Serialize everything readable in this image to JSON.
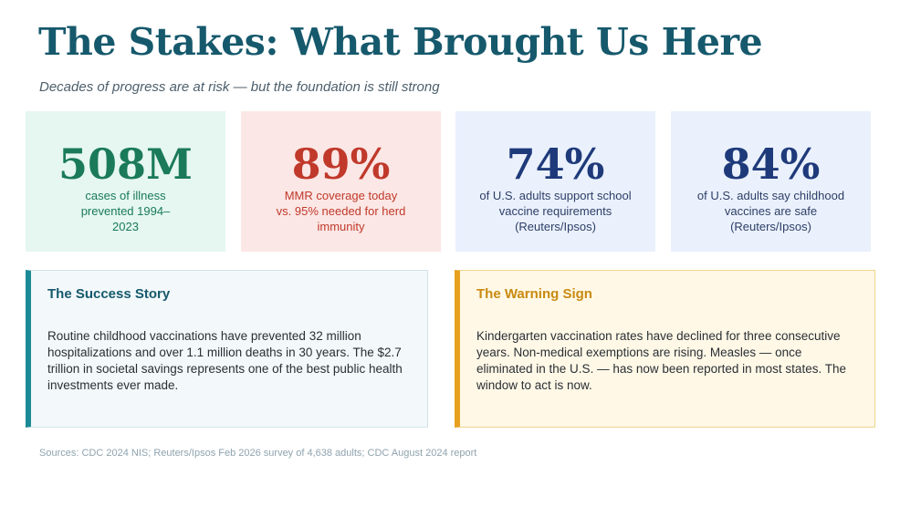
{
  "header": {
    "title": "The Stakes: What Brought Us Here",
    "subtitle": "Decades of progress are at risk — but the foundation is still strong"
  },
  "stats": [
    {
      "value": "508M",
      "label": "cases of illness prevented 1994–2023"
    },
    {
      "value": "89%",
      "label": "MMR coverage today vs. 95% needed for herd immunity"
    },
    {
      "value": "74%",
      "label": "of U.S. adults support school vaccine requirements (Reuters/Ipsos)"
    },
    {
      "value": "84%",
      "label": "of U.S. adults say childhood vaccines are safe (Reuters/Ipsos)"
    }
  ],
  "panels": [
    {
      "title": "The Success Story",
      "body": "Routine childhood vaccinations have prevented 32 million hospitalizations and over 1.1 million deaths in 30 years. The $2.7 trillion in societal savings represents one of the best public health investments ever made."
    },
    {
      "title": "The Warning Sign",
      "body": "Kindergarten vaccination rates have declined for three consecutive years. Non-medical exemptions are rising. Measles — once eliminated in the U.S. — has now been reported in most states. The window to act is now."
    }
  ],
  "footer": {
    "sources": "Sources: CDC 2024 NIS; Reuters/Ipsos Feb 2026 survey of 4,638 adults; CDC August 2024 report"
  }
}
